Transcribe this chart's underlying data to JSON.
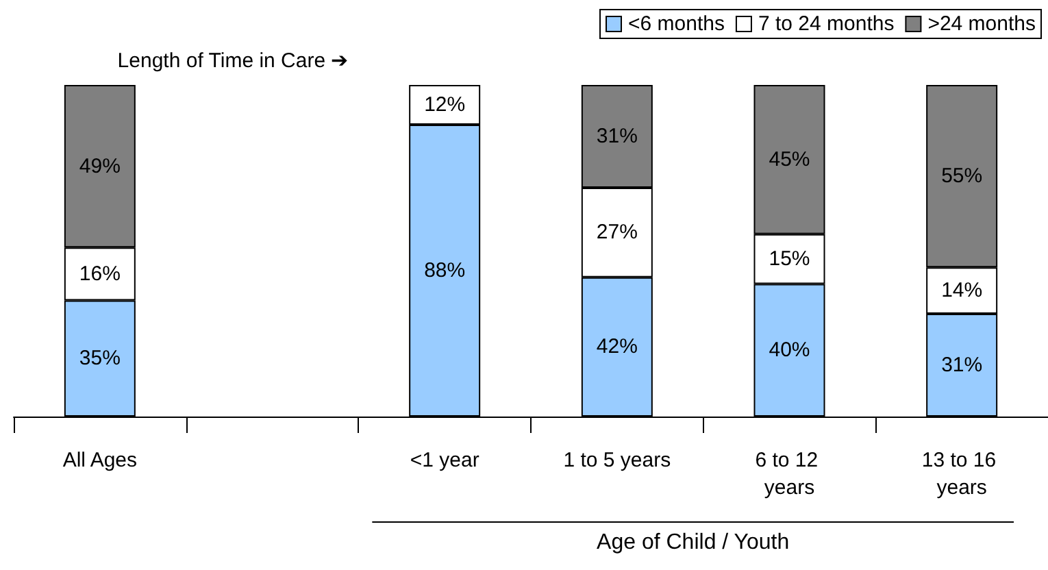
{
  "chart_data": {
    "type": "bar",
    "stacked": true,
    "legend": "top right",
    "xlabel": "Age of Child / Youth",
    "annotations": [
      "Length of Time in Care ➔"
    ],
    "categories": [
      "All Ages",
      null,
      "<1 year",
      "1 to 5 years",
      "6 to 12 years",
      "13 to 16 years"
    ],
    "series": [
      {
        "name": "<6 months",
        "color": "#99ccff",
        "values": [
          35,
          null,
          88,
          42,
          40,
          31
        ],
        "value_labels": [
          "35%",
          null,
          "88%",
          "42%",
          "40%",
          "31%"
        ]
      },
      {
        "name": "7 to 24 months",
        "color": "#ffffff",
        "values": [
          16,
          null,
          12,
          27,
          15,
          14
        ],
        "value_labels": [
          "16%",
          null,
          "12%",
          "27%",
          "15%",
          "14%"
        ]
      },
      {
        "name": ">24 months",
        "color": "#808080",
        "values": [
          49,
          null,
          null,
          31,
          45,
          55
        ],
        "value_labels": [
          "49%",
          null,
          null,
          "31%",
          "45%",
          "55%"
        ]
      }
    ]
  }
}
